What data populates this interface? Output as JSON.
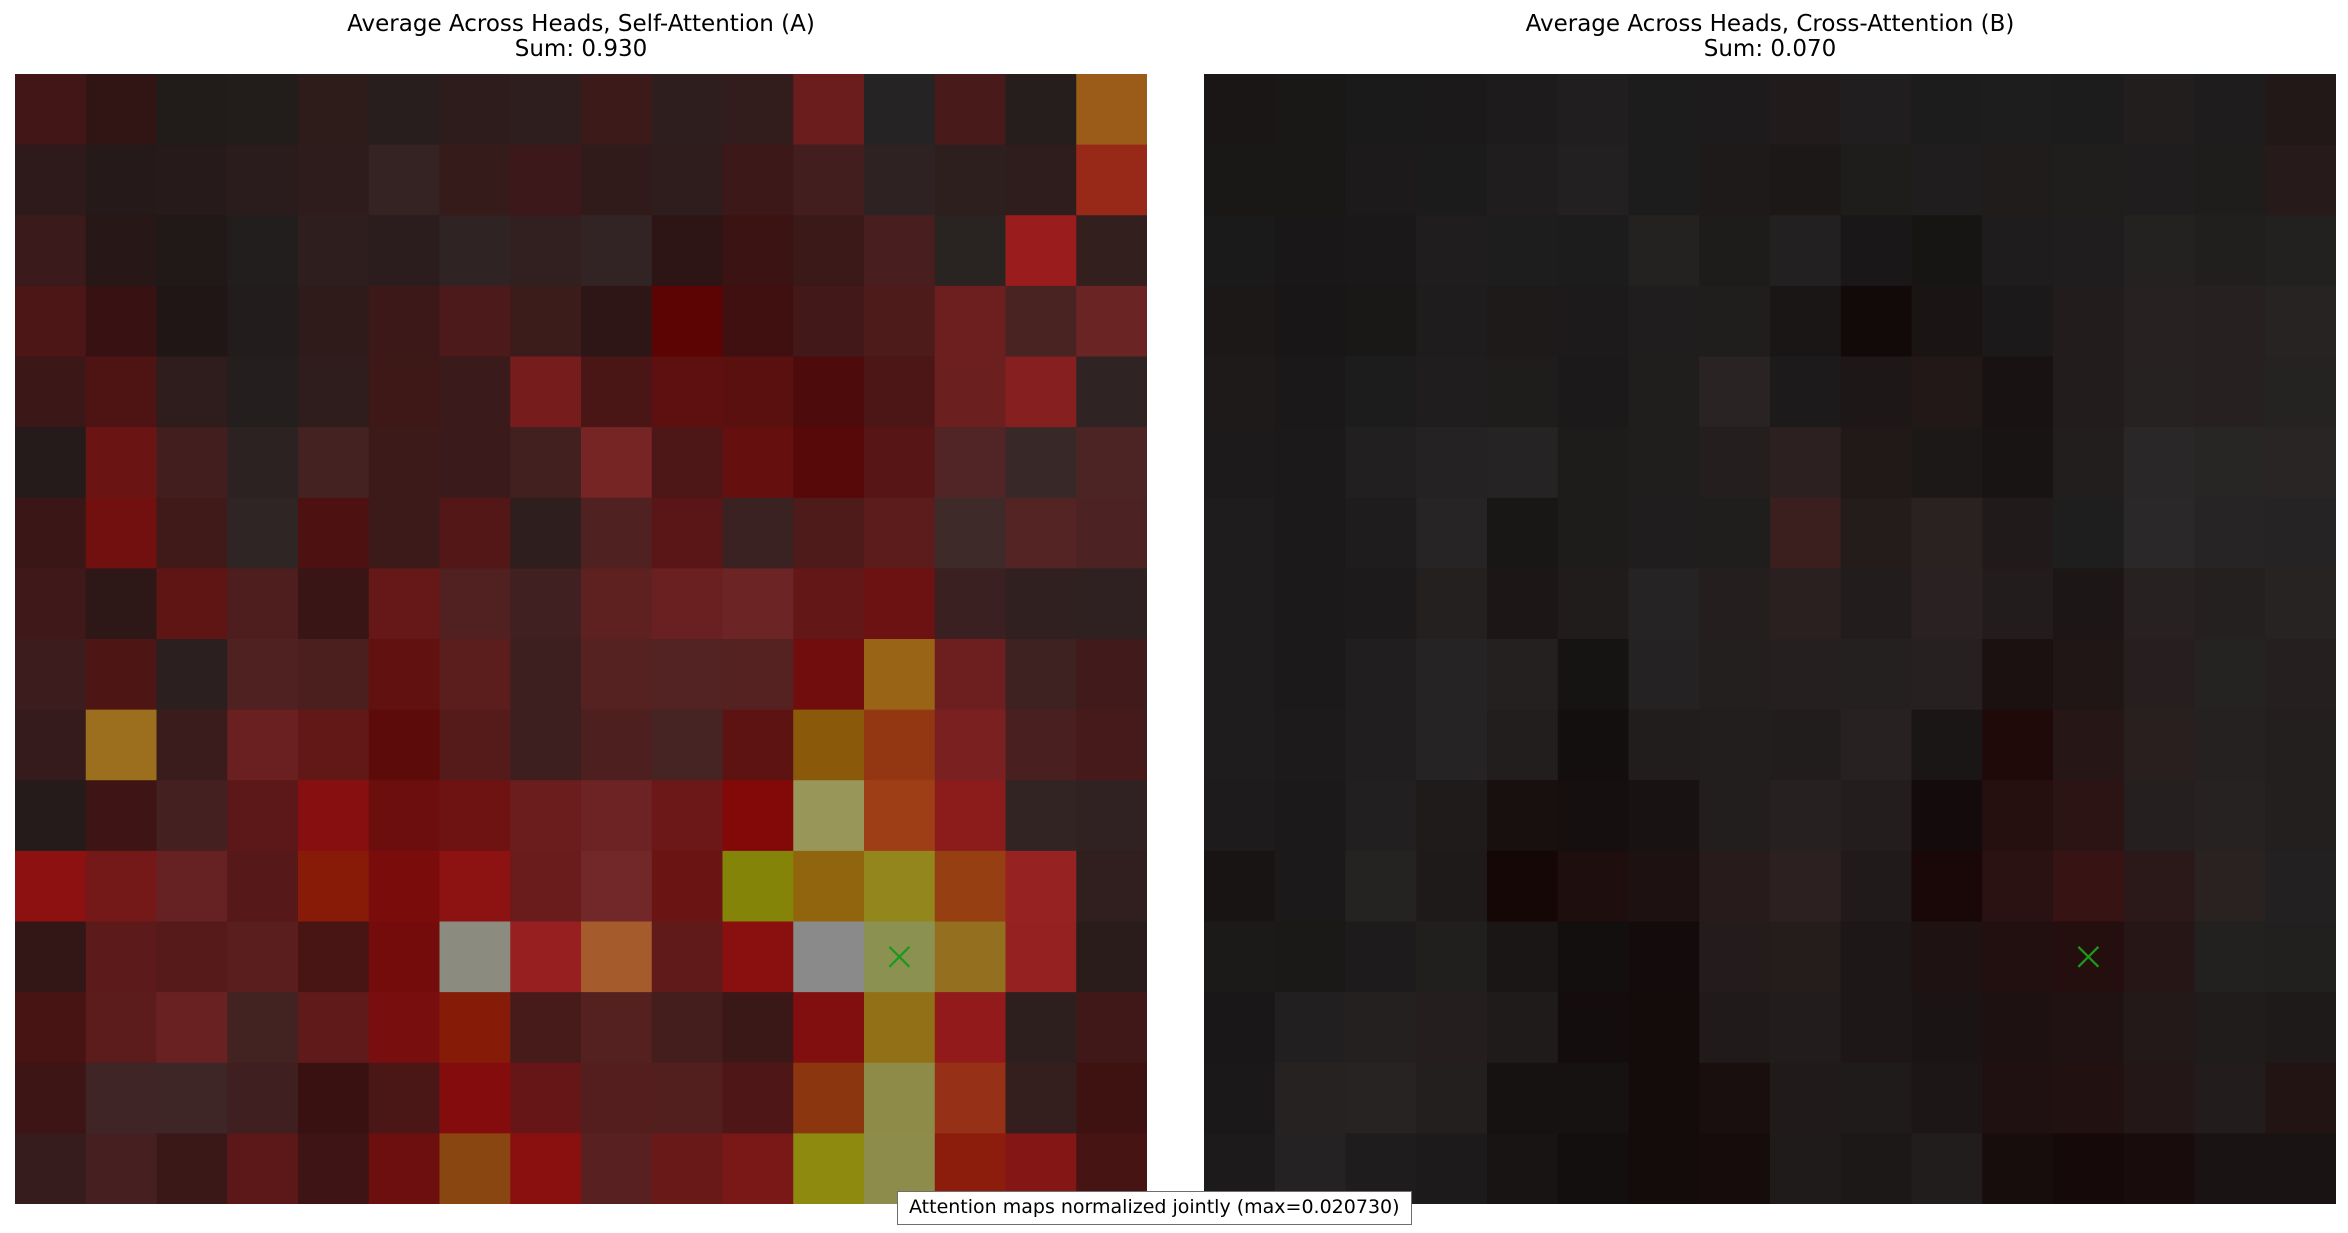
{
  "chart_data": [
    {
      "type": "heatmap",
      "title": "Average Across Heads, Self-Attention (A)",
      "subtitle": "Sum: 0.930",
      "grid": false,
      "axes": "off",
      "marker": {
        "row": 12,
        "col": 12,
        "symbol": "x",
        "color": "#1a9a1a"
      },
      "colors": [
        [
          "#421616",
          "#311414",
          "#211b1a",
          "#221c1b",
          "#2e1c1b",
          "#271e1d",
          "#2e1c1c",
          "#2e1e1e",
          "#3d1a1a",
          "#2e1e1e",
          "#331c1c",
          "#6b1c1c",
          "#252323",
          "#481a1a",
          "#261d1d",
          "#9a5c18"
        ],
        [
          "#2e1a1a",
          "#261919",
          "#261a1a",
          "#2a1c1c",
          "#2e1c1c",
          "#352222",
          "#361b1b",
          "#3c181a",
          "#311a1a",
          "#2f1c1c",
          "#3c1818",
          "#431e1e",
          "#2e2222",
          "#2e1f1f",
          "#2f1d1d",
          "#982919"
        ],
        [
          "#3a1a1a",
          "#271717",
          "#211818",
          "#221e1e",
          "#2e1e1e",
          "#2b1d1d",
          "#302323",
          "#321f1f",
          "#322424",
          "#2e1515",
          "#3c1313",
          "#3b1919",
          "#481e1e",
          "#292322",
          "#9b1c1c",
          "#341f1f"
        ],
        [
          "#4c1616",
          "#381212",
          "#211616",
          "#221c1c",
          "#301b1b",
          "#3d1818",
          "#4c1a1a",
          "#3c1b1b",
          "#2e1616",
          "#5c0404",
          "#400f0f",
          "#421818",
          "#4e1b1b",
          "#6d1e1e",
          "#492222",
          "#6a2424"
        ],
        [
          "#3b1717",
          "#4e1414",
          "#2f1d1d",
          "#241e1e",
          "#2f1c1c",
          "#3e1717",
          "#3a1a1a",
          "#761c1c",
          "#491515",
          "#5e0f0f",
          "#5b1010",
          "#4e0b0b",
          "#4d1616",
          "#6c1f1f",
          "#861f1f",
          "#302323"
        ],
        [
          "#261b1b",
          "#6a1414",
          "#431e1e",
          "#2c2222",
          "#452222",
          "#3d1a1a",
          "#3a1a1a",
          "#432020",
          "#772424",
          "#4d1717",
          "#650f0f",
          "#570808",
          "#581515",
          "#512525",
          "#382828",
          "#4d2424"
        ],
        [
          "#3b1616",
          "#721010",
          "#401919",
          "#2f2525",
          "#4d1111",
          "#3c1a1a",
          "#541717",
          "#2e1e1e",
          "#4f2121",
          "#5a1616",
          "#3b2222",
          "#4e1a1a",
          "#5d1c1c",
          "#3f2a2a",
          "#542424",
          "#4c2222"
        ],
        [
          "#3f1919",
          "#2e1717",
          "#601515",
          "#4e1e1e",
          "#3a1515",
          "#661717",
          "#512121",
          "#402020",
          "#5f2020",
          "#6a2020",
          "#6d2424",
          "#641717",
          "#6d1212",
          "#3a2020",
          "#312020",
          "#2f2121"
        ],
        [
          "#3c1c1c",
          "#4e1515",
          "#2b1f1f",
          "#502121",
          "#4c1f1f",
          "#621111",
          "#5c1d1d",
          "#3e1f1f",
          "#552121",
          "#532222",
          "#562121",
          "#720d0d",
          "#9a6417",
          "#6d1f1f",
          "#3e2121",
          "#411b1b"
        ],
        [
          "#351b1b",
          "#9b6f1e",
          "#3b1c1c",
          "#6a2020",
          "#631818",
          "#5c0a0a",
          "#551a1a",
          "#3e1f1f",
          "#4e1f1f",
          "#462424",
          "#5e1313",
          "#8a5a0a",
          "#933712",
          "#7a2020",
          "#4a1f1f",
          "#461a1a"
        ],
        [
          "#261b1b",
          "#3f1414",
          "#452020",
          "#5c1818",
          "#880f0f",
          "#6c0e0e",
          "#6e1212",
          "#6b1d1d",
          "#6d2323",
          "#6c1818",
          "#830808",
          "#99965a",
          "#9d3e16",
          "#8c1c1c",
          "#332424",
          "#302222"
        ],
        [
          "#8e1111",
          "#741818",
          "#662222",
          "#561818",
          "#881a08",
          "#7b0c0c",
          "#8d1313",
          "#6a1b1b",
          "#722828",
          "#6b1414",
          "#848408",
          "#91650e",
          "#92861c",
          "#953f12",
          "#962222",
          "#311f1f"
        ],
        [
          "#331616",
          "#5c1a1a",
          "#571a1a",
          "#5a1e1e",
          "#481414",
          "#750c0c",
          "#8b8b80",
          "#981f1f",
          "#a65b2c",
          "#611a1a",
          "#8a0f0f",
          "#8a8a8a",
          "#8b9150",
          "#946f1f",
          "#962121",
          "#2b1c1c"
        ],
        [
          "#481313",
          "#5c1c1c",
          "#6a2121",
          "#432222",
          "#611a1a",
          "#790e0e",
          "#861c08",
          "#481b1b",
          "#542020",
          "#441d1d",
          "#3a1818",
          "#820f0f",
          "#927018",
          "#921a1a",
          "#2e1f1f",
          "#401818"
        ],
        [
          "#3d1515",
          "#3f2525",
          "#3f2626",
          "#3f1f1f",
          "#3a1111",
          "#4a1616",
          "#850c0c",
          "#661616",
          "#551e1e",
          "#531e1e",
          "#4e1616",
          "#8c360f",
          "#8e8a48",
          "#963016",
          "#341e1e",
          "#3f1212"
        ],
        [
          "#361c1c",
          "#462020",
          "#3a1818",
          "#5c1818",
          "#3f1414",
          "#6e0f0f",
          "#8a4610",
          "#8a1010",
          "#582020",
          "#6a1919",
          "#7a1717",
          "#8e8a10",
          "#8e8c4a",
          "#8c1c0c",
          "#841616",
          "#471414"
        ]
      ]
    },
    {
      "type": "heatmap",
      "title": "Average Across Heads, Cross-Attention (B)",
      "subtitle": "Sum: 0.070",
      "grid": false,
      "axes": "off",
      "marker": {
        "row": 12,
        "col": 12,
        "symbol": "x",
        "color": "#1a9a1a"
      },
      "colors": [
        [
          "#1a1616",
          "#1a1717",
          "#1b1a1a",
          "#1b1919",
          "#1d1b1b",
          "#201e1e",
          "#1d1c1c",
          "#1d1b1b",
          "#221b1b",
          "#201e1e",
          "#1d1c1c",
          "#1e1d1d",
          "#1d1c1c",
          "#221e1e",
          "#1e1c1c",
          "#221818"
        ],
        [
          "#1a1717",
          "#1a1717",
          "#1c1a1a",
          "#1c1b1b",
          "#1f1d1d",
          "#222020",
          "#1d1c1c",
          "#1e1a1a",
          "#1c1818",
          "#1f1c1c",
          "#1f1d1d",
          "#211c1c",
          "#201d1d",
          "#1f1d1d",
          "#1f1c1c",
          "#261a1a"
        ],
        [
          "#1b1a1a",
          "#191717",
          "#1a1818",
          "#1f1d1d",
          "#1e1d1d",
          "#1d1c1c",
          "#242121",
          "#1e1b1b",
          "#222020",
          "#191717",
          "#171414",
          "#1e1c1c",
          "#1f1d1d",
          "#242121",
          "#211e1e",
          "#232020"
        ],
        [
          "#1d1818",
          "#181616",
          "#1a1717",
          "#1e1c1c",
          "#1f1a1a",
          "#1c1a1a",
          "#1f1d1d",
          "#201d1d",
          "#1a1616",
          "#120909",
          "#1a1414",
          "#1b1919",
          "#221c1c",
          "#282121",
          "#262020",
          "#272323"
        ],
        [
          "#1e1a1a",
          "#1a1818",
          "#1d1c1c",
          "#1f1d1d",
          "#1f1c1c",
          "#1b1919",
          "#201d1d",
          "#2a2323",
          "#1c1a1a",
          "#1e1717",
          "#221818",
          "#181212",
          "#221c1c",
          "#262222",
          "#272020",
          "#252222"
        ],
        [
          "#1c1a1a",
          "#1b1919",
          "#211f1f",
          "#242222",
          "#252323",
          "#1e1b1b",
          "#201d1d",
          "#241e1e",
          "#2d2020",
          "#211818",
          "#1d1818",
          "#181414",
          "#221e1e",
          "#292727",
          "#282525",
          "#2a2525"
        ],
        [
          "#1e1c1c",
          "#1b1919",
          "#1e1c1c",
          "#262424",
          "#191616",
          "#1e1b1b",
          "#1f1d1d",
          "#201d1d",
          "#3b1f1f",
          "#241b1b",
          "#2a2121",
          "#201a1a",
          "#1f1e1e",
          "#2a2828",
          "#262424",
          "#252323"
        ],
        [
          "#1e1c1c",
          "#1b1919",
          "#1c1a1a",
          "#242020",
          "#1c1616",
          "#201c1c",
          "#252323",
          "#241e1e",
          "#2b2020",
          "#221c1c",
          "#2a2222",
          "#231c1c",
          "#1d1616",
          "#282121",
          "#252020",
          "#282323"
        ],
        [
          "#1e1c1c",
          "#1b1919",
          "#201e1e",
          "#252323",
          "#242020",
          "#161313",
          "#242222",
          "#241f1f",
          "#261f1f",
          "#252020",
          "#262020",
          "#1b1111",
          "#211616",
          "#271f1f",
          "#252222",
          "#261f1f"
        ],
        [
          "#1e1c1c",
          "#1c1a1a",
          "#201e1e",
          "#252323",
          "#231e1e",
          "#140f0f",
          "#211d1d",
          "#221e1e",
          "#221d1d",
          "#272121",
          "#1b1616",
          "#200909",
          "#261616",
          "#291f1f",
          "#262121",
          "#241f1f"
        ],
        [
          "#1d1b1b",
          "#1b1919",
          "#211f1f",
          "#1f1b1b",
          "#180f0f",
          "#160f0f",
          "#181212",
          "#221e1e",
          "#272020",
          "#241d1d",
          "#140c0c",
          "#260f0f",
          "#2c1414",
          "#261f1f",
          "#272222",
          "#241f1f"
        ],
        [
          "#181414",
          "#1b1919",
          "#252222",
          "#1f1a1a",
          "#160707",
          "#1e0e0e",
          "#1e1111",
          "#271b1b",
          "#2d2020",
          "#201a1a",
          "#1a0707",
          "#2b1212",
          "#381313",
          "#2b1818",
          "#2a2121",
          "#222020"
        ],
        [
          "#1c1919",
          "#1b1818",
          "#1d1b1b",
          "#211e1e",
          "#1b1616",
          "#140f0f",
          "#140c0c",
          "#241c1c",
          "#251c1c",
          "#1d1717",
          "#1f1212",
          "#221010",
          "#250e0e",
          "#261616",
          "#232020",
          "#221f1f"
        ],
        [
          "#191717",
          "#211f1f",
          "#252020",
          "#251e1e",
          "#201b1b",
          "#140d0d",
          "#140b0b",
          "#201a1a",
          "#231c1c",
          "#1e1717",
          "#1b1414",
          "#1d1111",
          "#201212",
          "#231919",
          "#211c1c",
          "#1e1a1a"
        ],
        [
          "#1a1818",
          "#262222",
          "#282323",
          "#241f1f",
          "#171212",
          "#161212",
          "#140b0b",
          "#190f0f",
          "#201a1a",
          "#1f1b1b",
          "#1d1616",
          "#1f1111",
          "#221111",
          "#231717",
          "#221c1c",
          "#231414"
        ],
        [
          "#1c1a1a",
          "#242222",
          "#1e1c1c",
          "#1c1a1a",
          "#181414",
          "#140f0f",
          "#140b0b",
          "#170c0c",
          "#201b1b",
          "#1c1818",
          "#221d1d",
          "#180d0d",
          "#160909",
          "#180c0c",
          "#1a1313",
          "#1a1313"
        ]
      ]
    }
  ],
  "footnote": "Attention maps normalized jointly (max=0.020730)"
}
